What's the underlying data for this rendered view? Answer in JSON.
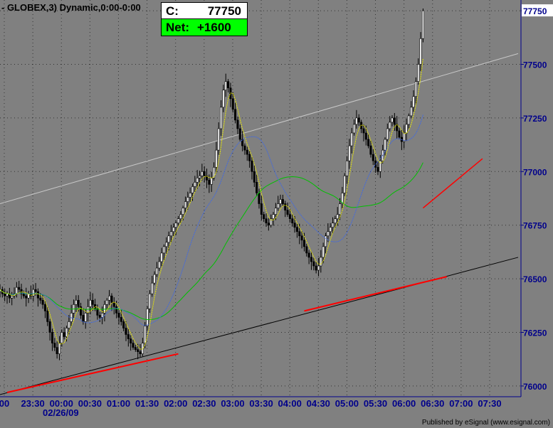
{
  "header": {
    "title": "- GLOBEX,3) Dynamic,0:00-0:00"
  },
  "quote": {
    "close_label": "C:",
    "close_value": "77750",
    "net_label": "Net:",
    "net_value": "+1600"
  },
  "credit": "Published by eSignal (www.esignal.com)",
  "date_label": "02/26/09",
  "colors": {
    "background": "#808080",
    "axis": "#00008b",
    "candle_up": "#ffffff",
    "candle_down": "#000000",
    "ma_fast": "#e6e600",
    "ma_mid": "#4169e1",
    "ma_slow": "#00c000",
    "trend_red": "#ff0000",
    "trend_black": "#000000",
    "channel_top": "#c8c8c8"
  },
  "chart_data": {
    "type": "candlestick",
    "title": "",
    "y_ticks": [
      "77750",
      "77500",
      "77250",
      "77000",
      "76750",
      "76500",
      "76250",
      "76000"
    ],
    "ylim": [
      75950,
      77800
    ],
    "x_ticks": [
      "00",
      "23:30",
      "00:00",
      "00:30",
      "01:00",
      "01:30",
      "02:00",
      "02:30",
      "03:00",
      "03:30",
      "04:00",
      "04:30",
      "05:00",
      "05:30",
      "06:00",
      "06:30",
      "07:00",
      "07:30"
    ],
    "x_range": [
      0,
      218
    ],
    "grid": true,
    "closes": [
      76450,
      76430,
      76420,
      76430,
      76410,
      76420,
      76430,
      76460,
      76450,
      76430,
      76420,
      76410,
      76430,
      76420,
      76450,
      76440,
      76410,
      76400,
      76380,
      76350,
      76300,
      76250,
      76200,
      76180,
      76150,
      76200,
      76250,
      76230,
      76270,
      76300,
      76340,
      76380,
      76400,
      76370,
      76330,
      76300,
      76340,
      76370,
      76400,
      76380,
      76360,
      76330,
      76320,
      76340,
      76380,
      76400,
      76420,
      76390,
      76370,
      76340,
      76320,
      76300,
      76270,
      76240,
      76220,
      76200,
      76180,
      76170,
      76160,
      76150,
      76200,
      76280,
      76360,
      76430,
      76480,
      76520,
      76550,
      76580,
      76620,
      76650,
      76670,
      76700,
      76720,
      76740,
      76760,
      76780,
      76800,
      76830,
      76860,
      76880,
      76900,
      76930,
      76950,
      76970,
      76980,
      77000,
      76980,
      76960,
      76940,
      76970,
      77020,
      77100,
      77200,
      77300,
      77380,
      77420,
      77390,
      77340,
      77290,
      77240,
      77200,
      77150,
      77120,
      77100,
      77080,
      77050,
      77000,
      76950,
      76900,
      76850,
      76800,
      76780,
      76760,
      76750,
      76780,
      76800,
      76830,
      76850,
      76870,
      76850,
      76820,
      76800,
      76780,
      76760,
      76740,
      76720,
      76700,
      76680,
      76650,
      76620,
      76600,
      76580,
      76560,
      76540,
      76560,
      76600,
      76650,
      76700,
      76720,
      76740,
      76760,
      76780,
      76800,
      76850,
      76900,
      76980,
      77050,
      77120,
      77180,
      77220,
      77250,
      77230,
      77200,
      77180,
      77150,
      77120,
      77080,
      77050,
      77020,
      77000,
      77050,
      77100,
      77150,
      77200,
      77230,
      77250,
      77220,
      77190,
      77160,
      77140,
      77180,
      77220,
      77260,
      77300,
      77350,
      77420,
      77500,
      77620,
      77750
    ],
    "ma_fast_period": 5,
    "ma_mid_period": 20,
    "ma_slow_period": 50,
    "channel_top": [
      [
        0,
        76850
      ],
      [
        218,
        77550
      ]
    ],
    "trendline_black": [
      [
        0,
        75960
      ],
      [
        218,
        76600
      ]
    ],
    "trendline_red": [
      [
        3,
        75970
      ],
      [
        75,
        76150
      ]
    ],
    "trendline_red_2": [
      [
        128,
        76350
      ],
      [
        188,
        76510
      ]
    ],
    "trendline_red_3": [
      [
        178,
        76830
      ],
      [
        203,
        77060
      ]
    ]
  }
}
